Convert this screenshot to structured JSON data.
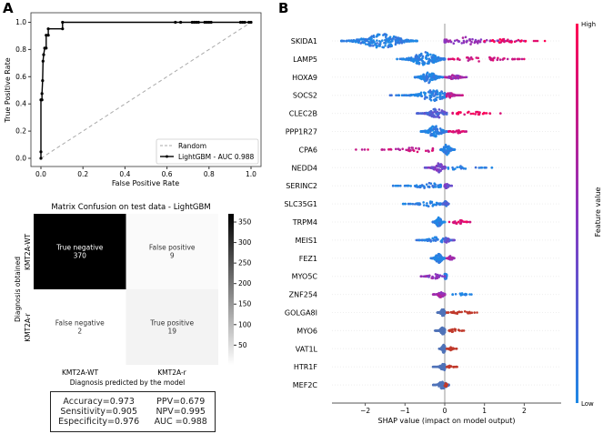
{
  "panel_labels": {
    "a": "A",
    "b": "B"
  },
  "chart_data": [
    {
      "type": "line",
      "title": "",
      "xlabel": "False Positive Rate",
      "ylabel": "True Positive Rate",
      "xlim": [
        0,
        1
      ],
      "ylim": [
        0,
        1
      ],
      "xticks": [
        "0.0",
        "0.2",
        "0.4",
        "0.6",
        "0.8",
        "1.0"
      ],
      "yticks": [
        "0.0",
        "0.2",
        "0.4",
        "0.6",
        "0.8",
        "1.0"
      ],
      "legend_position": "bottom-right",
      "series": [
        {
          "name": "Random",
          "style": "dashed",
          "color": "#aaaaaa",
          "x": [
            0,
            1
          ],
          "y": [
            0,
            1
          ]
        },
        {
          "name": "LightGBM - AUC 0.988",
          "style": "solid-markers",
          "color": "#000000",
          "x": [
            0,
            0,
            0,
            0.005,
            0.005,
            0.008,
            0.01,
            0.013,
            0.018,
            0.025,
            0.025,
            0.035,
            0.035,
            0.103,
            0.103,
            0.64,
            0.665,
            0.72,
            0.73,
            0.74,
            0.75,
            0.78,
            0.79,
            0.8,
            0.81,
            0.95,
            0.96,
            0.97,
            0.99,
            1
          ],
          "y": [
            0,
            0.048,
            0.43,
            0.43,
            0.476,
            0.571,
            0.714,
            0.762,
            0.81,
            0.81,
            0.905,
            0.905,
            0.952,
            0.952,
            1,
            1,
            1,
            1,
            1,
            1,
            1,
            1,
            1,
            1,
            1,
            1,
            1,
            1,
            1,
            1
          ]
        }
      ]
    },
    {
      "type": "heatmap",
      "title": "Matrix Confusion on test data - LightGBM",
      "xlabel": "Diagnosis predicted by the model",
      "ylabel": "Diagnosis obtained",
      "x_categories": [
        "KMT2A-WT",
        "KMT2A-r"
      ],
      "y_categories": [
        "KMT2A-WT",
        "KMT2A-r"
      ],
      "cells": [
        [
          {
            "label": "True negative",
            "value": 370
          },
          {
            "label": "False positive",
            "value": 9
          }
        ],
        [
          {
            "label": "False negative",
            "value": 2
          },
          {
            "label": "True positive",
            "value": 19
          }
        ]
      ],
      "colorbar": {
        "range": [
          2,
          370
        ],
        "ticks": [
          "50",
          "100",
          "150",
          "200",
          "250",
          "300",
          "350"
        ]
      }
    },
    {
      "type": "scatter",
      "subtype": "shap-beeswarm",
      "xlabel": "SHAP value (impact on model output)",
      "xlim": [
        -2.85,
        2.9
      ],
      "xticks": [
        "-2",
        "-1",
        "0",
        "1",
        "2"
      ],
      "colorbar": {
        "label": "Feature value",
        "high": "High",
        "low": "Low",
        "low_color": "#1e88e5",
        "mid_color": "#8a35c0",
        "high_color": "#ff0052"
      },
      "features": [
        {
          "name": "SKIDA1",
          "groups": [
            {
              "c": -1.6,
              "min": -2.6,
              "max": -0.7,
              "n": 220,
              "f": 0.03
            },
            {
              "c": 0.5,
              "min": 0.0,
              "max": 2.0,
              "n": 80,
              "f": 0.55
            },
            {
              "c": 1.5,
              "min": 1.0,
              "max": 2.65,
              "n": 30,
              "f": 0.95
            }
          ]
        },
        {
          "name": "LAMP5",
          "groups": [
            {
              "c": -0.5,
              "min": -1.2,
              "max": 0.0,
              "n": 170,
              "f": 0.03
            },
            {
              "c": 0.9,
              "min": 0.1,
              "max": 2.0,
              "n": 50,
              "f": 0.8
            }
          ]
        },
        {
          "name": "HOXA9",
          "groups": [
            {
              "c": -0.4,
              "min": -0.75,
              "max": -0.05,
              "n": 130,
              "f": 0.03
            },
            {
              "c": 0.25,
              "min": 0.0,
              "max": 0.55,
              "n": 45,
              "f": 0.6
            }
          ]
        },
        {
          "name": "SOCS2",
          "groups": [
            {
              "c": -0.3,
              "min": -1.4,
              "max": 0.0,
              "n": 130,
              "f": 0.03
            },
            {
              "c": 0.12,
              "min": 0.05,
              "max": 0.45,
              "n": 45,
              "f": 0.7
            }
          ]
        },
        {
          "name": "CLEC2B",
          "groups": [
            {
              "c": -0.2,
              "min": -0.7,
              "max": 0.05,
              "n": 110,
              "f": 0.25
            },
            {
              "c": 0.6,
              "min": 0.2,
              "max": 1.7,
              "n": 30,
              "f": 0.92
            }
          ]
        },
        {
          "name": "PPP1R27",
          "groups": [
            {
              "c": -0.25,
              "min": -0.6,
              "max": 0.1,
              "n": 130,
              "f": 0.03
            },
            {
              "c": 0.3,
              "min": 0.1,
              "max": 0.6,
              "n": 30,
              "f": 0.8
            }
          ]
        },
        {
          "name": "CPA6",
          "groups": [
            {
              "c": 0.05,
              "min": -0.1,
              "max": 0.25,
              "n": 120,
              "f": 0.03
            },
            {
              "c": -0.6,
              "min": -2.4,
              "max": -0.3,
              "n": 40,
              "f": 0.75
            }
          ]
        },
        {
          "name": "NEDD4",
          "groups": [
            {
              "c": 0.3,
              "min": 0.0,
              "max": 1.25,
              "n": 30,
              "f": 0.03
            },
            {
              "c": -0.15,
              "min": -0.5,
              "max": 0.0,
              "n": 100,
              "f": 0.4
            }
          ]
        },
        {
          "name": "SERINC2",
          "groups": [
            {
              "c": -0.4,
              "min": -1.3,
              "max": -0.1,
              "n": 60,
              "f": 0.03
            },
            {
              "c": 0.05,
              "min": 0.0,
              "max": 0.2,
              "n": 50,
              "f": 0.4
            }
          ]
        },
        {
          "name": "SLC35G1",
          "groups": [
            {
              "c": -0.4,
              "min": -1.05,
              "max": -0.1,
              "n": 50,
              "f": 0.03
            },
            {
              "c": 0.02,
              "min": -0.05,
              "max": 0.1,
              "n": 50,
              "f": 0.2
            }
          ]
        },
        {
          "name": "TRPM4",
          "groups": [
            {
              "c": -0.15,
              "min": -0.3,
              "max": 0.0,
              "n": 100,
              "f": 0.03
            },
            {
              "c": 0.35,
              "min": 0.1,
              "max": 0.65,
              "n": 30,
              "f": 0.85
            }
          ]
        },
        {
          "name": "MEIS1",
          "groups": [
            {
              "c": -0.2,
              "min": -0.85,
              "max": 0.0,
              "n": 60,
              "f": 0.03
            },
            {
              "c": 0.05,
              "min": 0.0,
              "max": 0.25,
              "n": 50,
              "f": 0.3
            }
          ]
        },
        {
          "name": "FEZ1",
          "groups": [
            {
              "c": -0.15,
              "min": -0.35,
              "max": 0.0,
              "n": 100,
              "f": 0.03
            },
            {
              "c": 0.15,
              "min": 0.05,
              "max": 0.25,
              "n": 40,
              "f": 0.6
            }
          ]
        },
        {
          "name": "MYO5C",
          "groups": [
            {
              "c": 0.02,
              "min": 0.0,
              "max": 0.05,
              "n": 50,
              "f": 0.03
            },
            {
              "c": -0.25,
              "min": -0.6,
              "max": 0.0,
              "n": 40,
              "f": 0.5
            }
          ]
        },
        {
          "name": "ZNF254",
          "groups": [
            {
              "c": 0.4,
              "min": 0.2,
              "max": 0.75,
              "n": 15,
              "f": 0.03
            },
            {
              "c": -0.1,
              "min": -0.3,
              "max": 0.0,
              "n": 60,
              "f": 0.6
            }
          ]
        },
        {
          "name": "GOLGA8I",
          "groups": [
            {
              "c": -0.05,
              "min": -0.2,
              "max": 0.0,
              "n": 80,
              "color": "#4f72b8"
            },
            {
              "c": 0.4,
              "min": 0.05,
              "max": 0.85,
              "n": 30,
              "color": "#c0392b"
            }
          ]
        },
        {
          "name": "MYO6",
          "groups": [
            {
              "c": -0.05,
              "min": -0.25,
              "max": 0.0,
              "n": 80,
              "color": "#4f72b8"
            },
            {
              "c": 0.25,
              "min": 0.05,
              "max": 0.55,
              "n": 20,
              "color": "#c0392b"
            }
          ]
        },
        {
          "name": "VAT1L",
          "groups": [
            {
              "c": -0.03,
              "min": -0.15,
              "max": 0.0,
              "n": 80,
              "color": "#4f72b8"
            },
            {
              "c": 0.15,
              "min": 0.05,
              "max": 0.3,
              "n": 20,
              "color": "#c0392b"
            }
          ]
        },
        {
          "name": "HTR1F",
          "groups": [
            {
              "c": -0.03,
              "min": -0.3,
              "max": 0.0,
              "n": 80,
              "color": "#4f72b8"
            },
            {
              "c": 0.15,
              "min": 0.05,
              "max": 0.32,
              "n": 20,
              "color": "#c0392b"
            }
          ]
        },
        {
          "name": "MEF2C",
          "groups": [
            {
              "c": -0.05,
              "min": -0.3,
              "max": 0.1,
              "n": 80,
              "color": "#4f72b8"
            },
            {
              "c": 0.03,
              "min": 0.0,
              "max": 0.06,
              "n": 20,
              "color": "#c0392b"
            }
          ]
        }
      ]
    }
  ],
  "metrics": {
    "left": [
      "Accuracy=0.973",
      "Sensitivity=0.905",
      "Especificity=0.976"
    ],
    "right": [
      "PPV=0.679",
      "NPV=0.995",
      "AUC =0.988"
    ]
  }
}
